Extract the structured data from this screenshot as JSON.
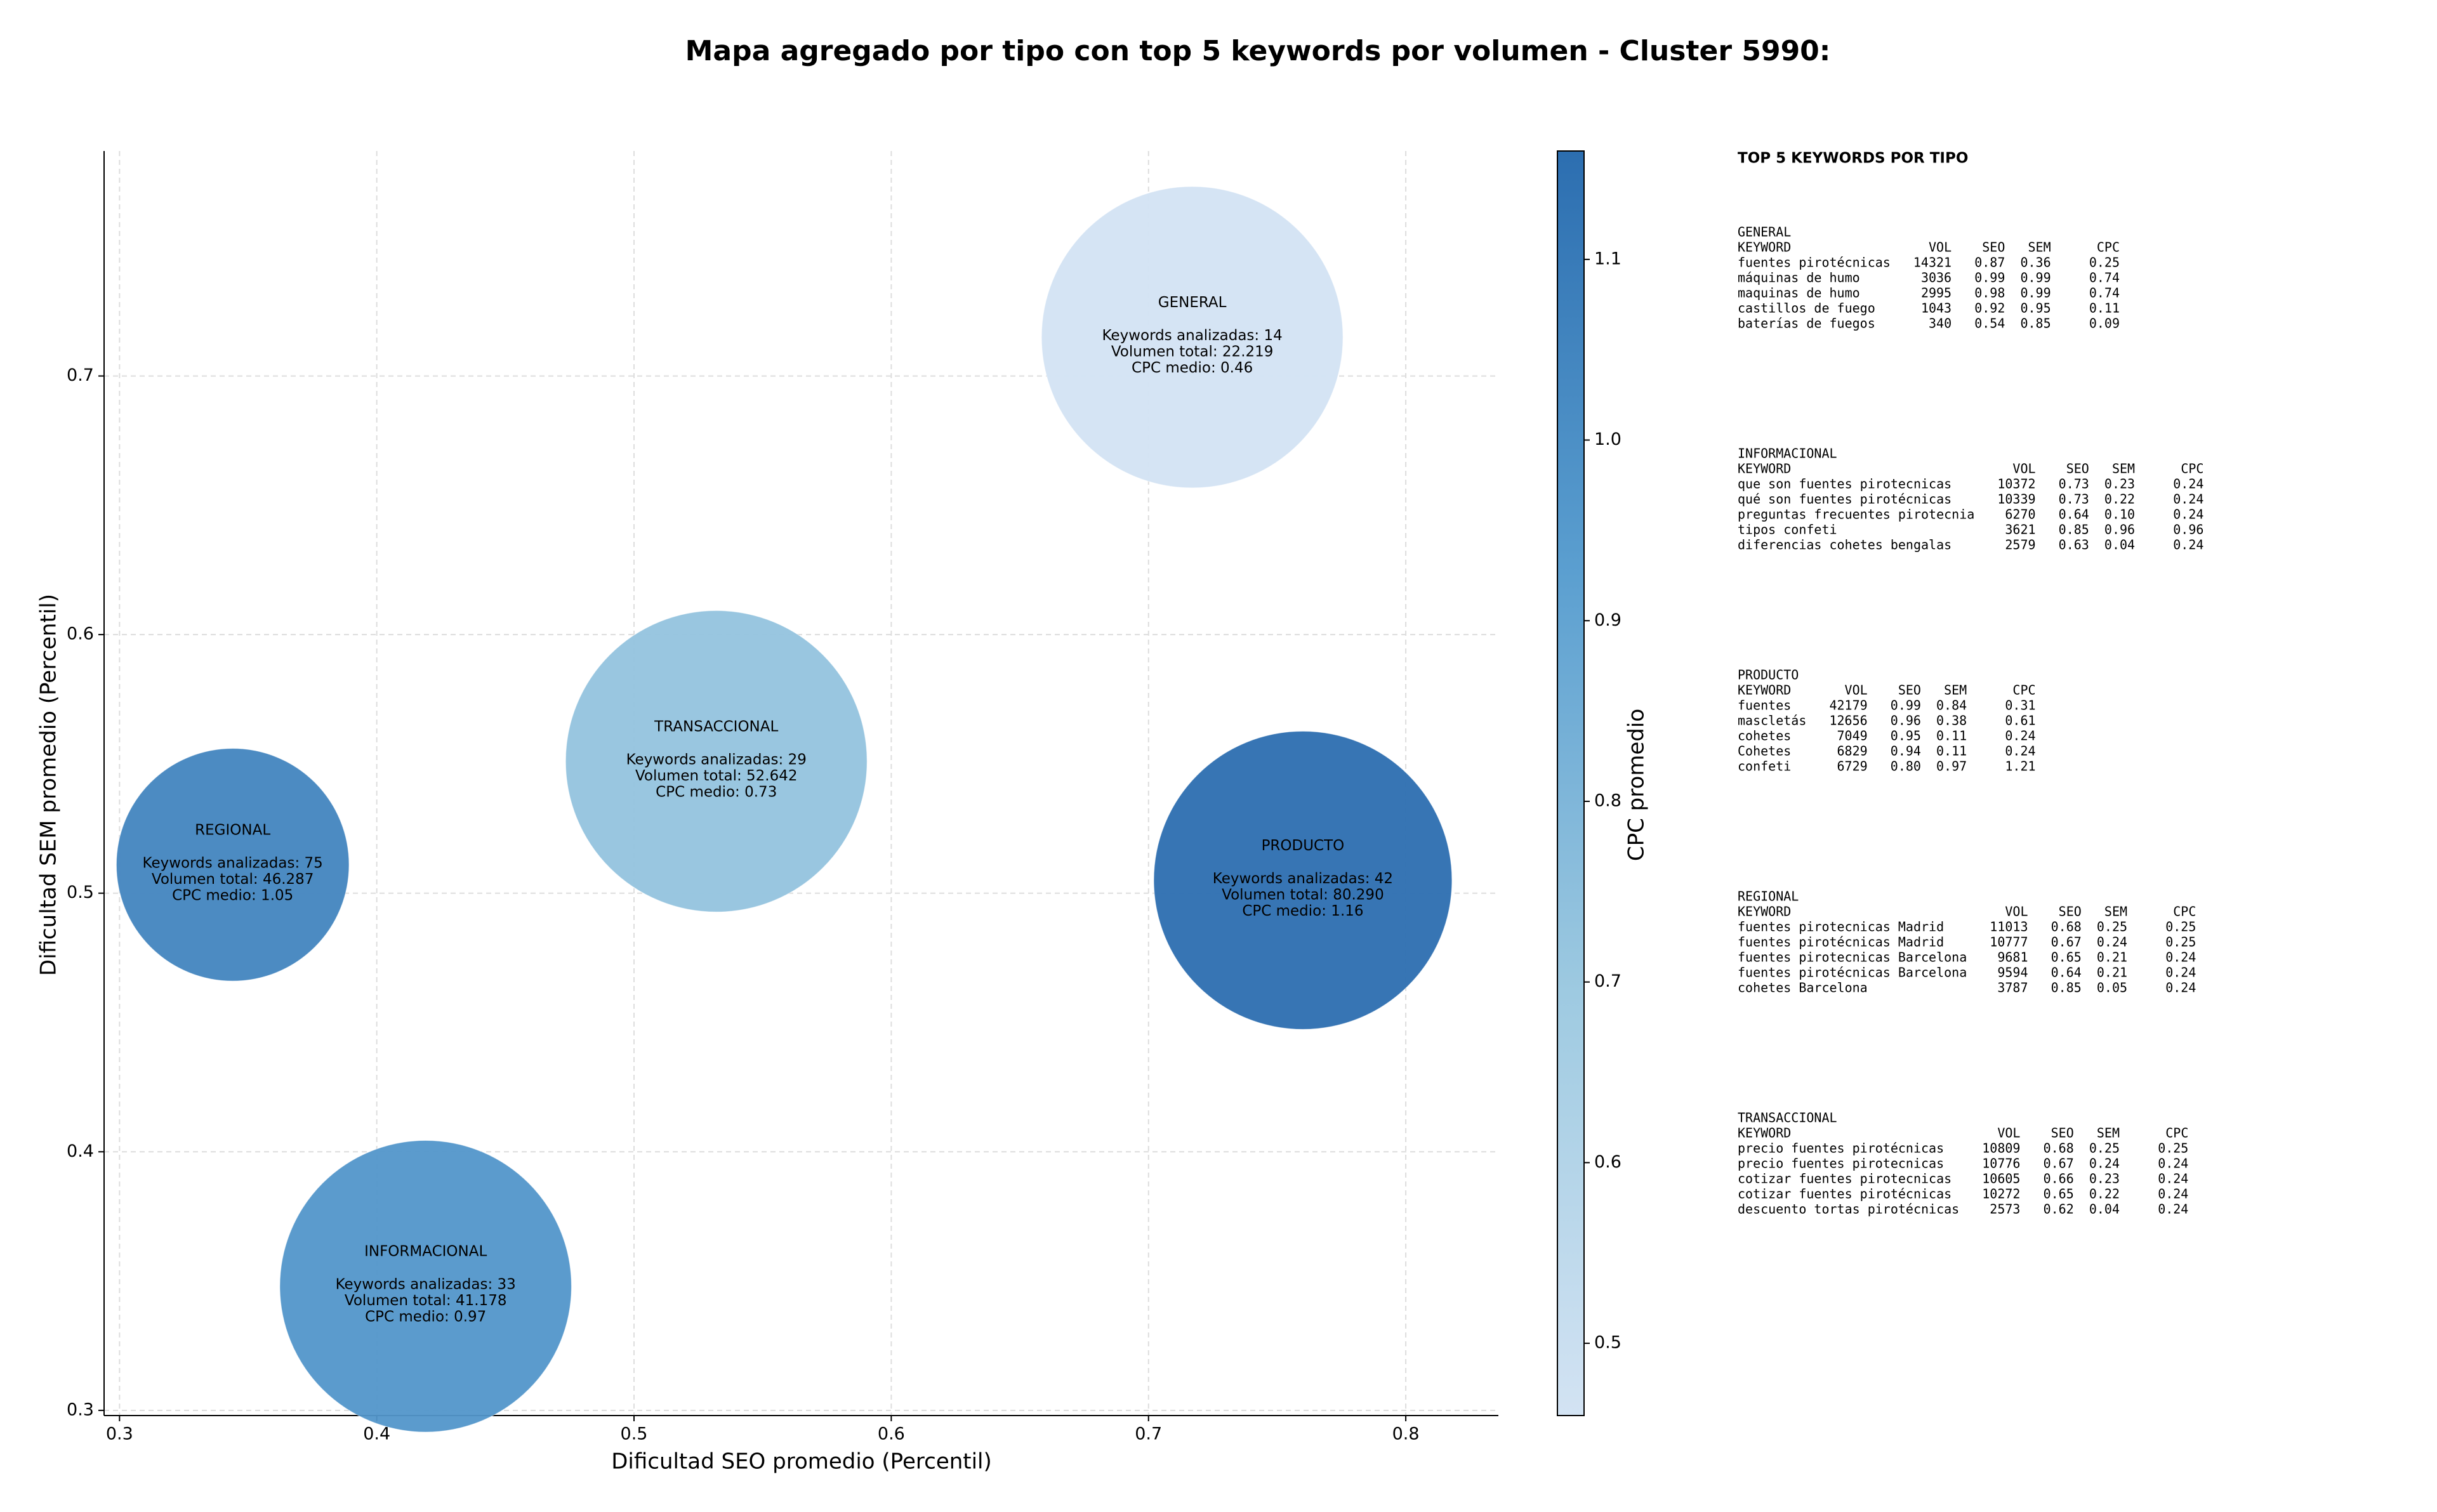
{
  "chart_data": {
    "type": "bubble",
    "title": "Mapa agregado por tipo con top 5 keywords por volumen - Cluster 5990:",
    "xlabel": "Dificultad SEO promedio (Percentil)",
    "ylabel": "Dificultad SEM promedio (Percentil)",
    "categories": [
      "GENERAL",
      "REGIONAL",
      "TRANSACCIONAL",
      "PRODUCTO",
      "INFORMACIONAL"
    ],
    "x": [
      0.717,
      0.344,
      0.532,
      0.76,
      0.419
    ],
    "y": [
      0.715,
      0.511,
      0.551,
      0.505,
      0.348
    ],
    "sizes": [
      9400,
      5600,
      9400,
      9200,
      8800
    ],
    "color_values": [
      0.46,
      1.05,
      0.73,
      1.16,
      0.97
    ],
    "annotations": [
      [
        "Keywords analizadas: 14",
        "Volumen total: 22.219",
        "CPC medio: 0.46"
      ],
      [
        "Keywords analizadas: 75",
        "Volumen total: 46.287",
        "CPC medio: 1.05"
      ],
      [
        "Keywords analizadas: 29",
        "Volumen total: 52.642",
        "CPC medio: 0.73"
      ],
      [
        "Keywords analizadas: 42",
        "Volumen total: 80.290",
        "CPC medio: 1.16"
      ],
      [
        "Keywords analizadas: 33",
        "Volumen total: 41.178",
        "CPC medio: 0.97"
      ]
    ],
    "xlim": [
      0.294,
      0.836
    ],
    "ylim": [
      0.298,
      0.787
    ],
    "xticks": [
      0.3,
      0.4,
      0.5,
      0.6,
      0.7,
      0.8
    ],
    "yticks": [
      0.3,
      0.4,
      0.5,
      0.6,
      0.7
    ],
    "grid": true,
    "colorbar": {
      "label": "CPC promedio",
      "lim": [
        0.46,
        1.16
      ],
      "ticks": [
        0.5,
        0.6,
        0.7,
        0.8,
        0.9,
        {
          "value": 1,
          "label": "1.0"
        },
        1.1
      ],
      "colors": [
        "#d3e3f3",
        "#9ecae1",
        "#5b9fd0",
        "#2c6eb0"
      ]
    }
  },
  "panel": {
    "title": "TOP 5 KEYWORDS POR TIPO",
    "header": [
      "KEYWORD",
      "VOL",
      "SEO",
      "SEM",
      "CPC"
    ],
    "blocks": [
      {
        "name": "GENERAL",
        "rows": [
          [
            "fuentes pirotécnicas",
            "14321",
            "0.87",
            "0.36",
            "0.25"
          ],
          [
            "máquinas de humo",
            "3036",
            "0.99",
            "0.99",
            "0.74"
          ],
          [
            "maquinas de humo",
            "2995",
            "0.98",
            "0.99",
            "0.74"
          ],
          [
            "castillos de fuego",
            "1043",
            "0.92",
            "0.95",
            "0.11"
          ],
          [
            "baterías de fuegos",
            "340",
            "0.54",
            "0.85",
            "0.09"
          ]
        ]
      },
      {
        "name": "INFORMACIONAL",
        "rows": [
          [
            "que son fuentes pirotecnicas",
            "10372",
            "0.73",
            "0.23",
            "0.24"
          ],
          [
            "qué son fuentes pirotécnicas",
            "10339",
            "0.73",
            "0.22",
            "0.24"
          ],
          [
            "preguntas frecuentes pirotecnia",
            "6270",
            "0.64",
            "0.10",
            "0.24"
          ],
          [
            "tipos confeti",
            "3621",
            "0.85",
            "0.96",
            "0.96"
          ],
          [
            "diferencias cohetes bengalas",
            "2579",
            "0.63",
            "0.04",
            "0.24"
          ]
        ]
      },
      {
        "name": "PRODUCTO",
        "rows": [
          [
            "fuentes",
            "42179",
            "0.99",
            "0.84",
            "0.31"
          ],
          [
            "mascletás",
            "12656",
            "0.96",
            "0.38",
            "0.61"
          ],
          [
            "cohetes",
            "7049",
            "0.95",
            "0.11",
            "0.24"
          ],
          [
            "Cohetes",
            "6829",
            "0.94",
            "0.11",
            "0.24"
          ],
          [
            "confeti",
            "6729",
            "0.80",
            "0.97",
            "1.21"
          ]
        ]
      },
      {
        "name": "REGIONAL",
        "rows": [
          [
            "fuentes pirotecnicas Madrid",
            "11013",
            "0.68",
            "0.25",
            "0.25"
          ],
          [
            "fuentes pirotécnicas Madrid",
            "10777",
            "0.67",
            "0.24",
            "0.25"
          ],
          [
            "fuentes pirotecnicas Barcelona",
            "9681",
            "0.65",
            "0.21",
            "0.24"
          ],
          [
            "fuentes pirotécnicas Barcelona",
            "9594",
            "0.64",
            "0.21",
            "0.24"
          ],
          [
            "cohetes Barcelona",
            "3787",
            "0.85",
            "0.05",
            "0.24"
          ]
        ]
      },
      {
        "name": "TRANSACCIONAL",
        "rows": [
          [
            "precio fuentes pirotécnicas",
            "10809",
            "0.68",
            "0.25",
            "0.25"
          ],
          [
            "precio fuentes pirotecnicas",
            "10776",
            "0.67",
            "0.24",
            "0.24"
          ],
          [
            "cotizar fuentes pirotecnicas",
            "10605",
            "0.66",
            "0.23",
            "0.24"
          ],
          [
            "cotizar fuentes pirotécnicas",
            "10272",
            "0.65",
            "0.22",
            "0.24"
          ],
          [
            "descuento tortas pirotécnicas",
            "2573",
            "0.62",
            "0.04",
            "0.24"
          ]
        ]
      }
    ]
  }
}
